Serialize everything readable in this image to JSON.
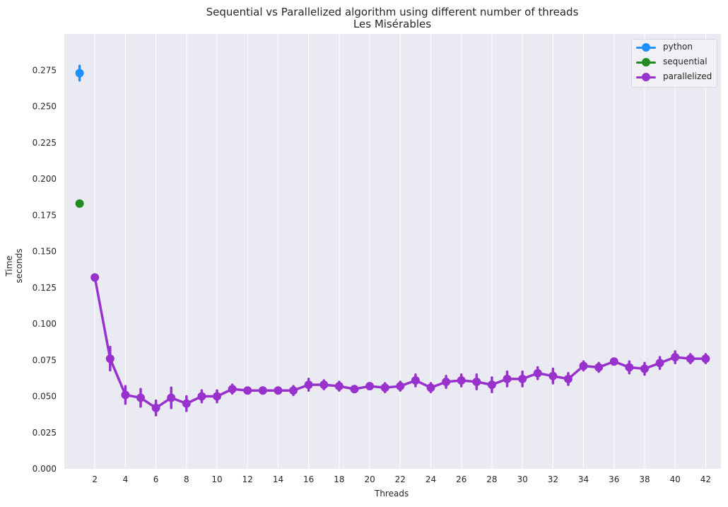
{
  "chart_data": {
    "type": "line",
    "title": "Sequential vs Parallelized algorithm using different number of threads",
    "subtitle": "Les Misérables",
    "xlabel": "Threads",
    "ylabel_line1": "Time",
    "ylabel_line2": "seconds",
    "xlim": [
      0,
      43
    ],
    "ylim": [
      0,
      0.3
    ],
    "xticks": [
      2,
      4,
      6,
      8,
      10,
      12,
      14,
      16,
      18,
      20,
      22,
      24,
      26,
      28,
      30,
      32,
      34,
      36,
      38,
      40,
      42
    ],
    "yticks": [
      0.0,
      0.025,
      0.05,
      0.075,
      0.1,
      0.125,
      0.15,
      0.175,
      0.2,
      0.225,
      0.25,
      0.275
    ],
    "grid": true,
    "legend_position": "top-right",
    "series": [
      {
        "name": "python",
        "color": "#1e90ff",
        "x": [
          1
        ],
        "y": [
          0.273
        ],
        "err": [
          0.005
        ]
      },
      {
        "name": "sequential",
        "color": "#228b22",
        "x": [
          1
        ],
        "y": [
          0.183
        ],
        "err": [
          0.001
        ]
      },
      {
        "name": "parallelized",
        "color": "#9932cc",
        "x": [
          2,
          3,
          4,
          5,
          6,
          7,
          8,
          9,
          10,
          11,
          12,
          13,
          14,
          15,
          16,
          17,
          18,
          19,
          20,
          21,
          22,
          23,
          24,
          25,
          26,
          27,
          28,
          29,
          30,
          31,
          32,
          33,
          34,
          35,
          36,
          37,
          38,
          39,
          40,
          41,
          42
        ],
        "y": [
          0.132,
          0.076,
          0.051,
          0.049,
          0.042,
          0.049,
          0.045,
          0.05,
          0.05,
          0.055,
          0.054,
          0.054,
          0.054,
          0.054,
          0.058,
          0.058,
          0.057,
          0.055,
          0.057,
          0.056,
          0.057,
          0.061,
          0.056,
          0.06,
          0.061,
          0.06,
          0.058,
          0.062,
          0.062,
          0.066,
          0.064,
          0.062,
          0.071,
          0.07,
          0.074,
          0.07,
          0.069,
          0.073,
          0.077,
          0.076,
          0.076
        ],
        "err": [
          0.002,
          0.008,
          0.006,
          0.006,
          0.005,
          0.007,
          0.005,
          0.004,
          0.004,
          0.003,
          0.002,
          0.002,
          0.002,
          0.003,
          0.004,
          0.003,
          0.003,
          0.002,
          0.002,
          0.003,
          0.003,
          0.004,
          0.003,
          0.004,
          0.004,
          0.005,
          0.005,
          0.005,
          0.005,
          0.004,
          0.005,
          0.004,
          0.003,
          0.003,
          0.002,
          0.004,
          0.004,
          0.004,
          0.004,
          0.003,
          0.003
        ]
      }
    ]
  }
}
